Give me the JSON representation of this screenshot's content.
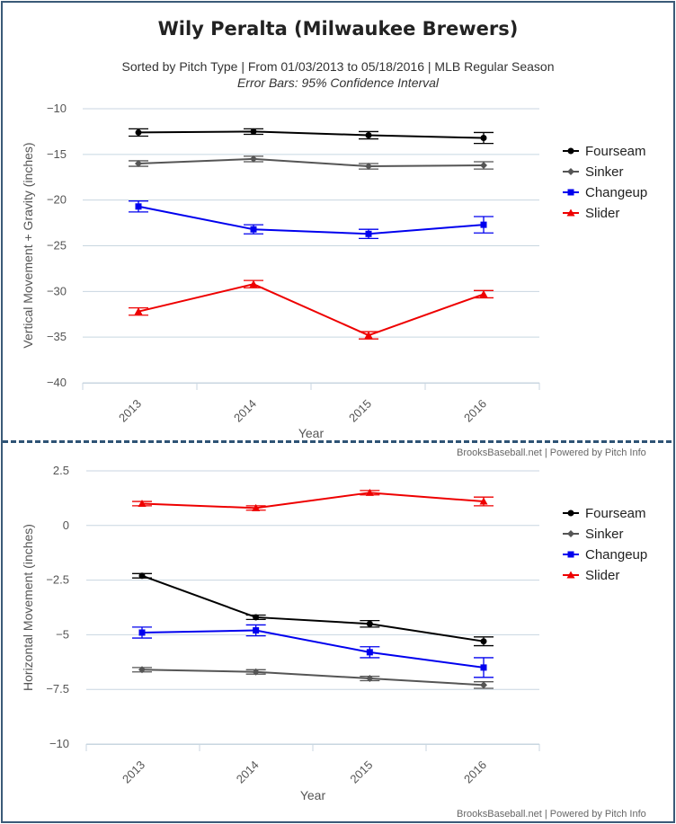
{
  "header": {
    "title": "Wily Peralta (Milwaukee Brewers)",
    "subtitle": "Sorted by Pitch Type | From 01/03/2013 to 05/18/2016 | MLB Regular Season",
    "subtitle2": "Error Bars: 95% Confidence Interval"
  },
  "credits": {
    "top": "BrooksBaseball.net | Powered by Pitch Info",
    "bottom": "BrooksBaseball.net | Powered by Pitch Info"
  },
  "colors": {
    "Fourseam": "#000000",
    "Sinker": "#555555",
    "Changeup": "#0000ee",
    "Slider": "#ee0000",
    "grid": "#c8d6e0",
    "separator": "#2e5375"
  },
  "chart_data": [
    {
      "type": "line",
      "title": "Wily Peralta (Milwaukee Brewers)",
      "xlabel": "Year",
      "ylabel": "Vertical Movement + Gravity (inches)",
      "categories": [
        "2013",
        "2014",
        "2015",
        "2016"
      ],
      "ylim": [
        -40,
        -10
      ],
      "yticks": [
        -10,
        -15,
        -20,
        -25,
        -30,
        -35,
        -40
      ],
      "ytick_labels": [
        "-10",
        "-15",
        "-20",
        "-25",
        "-30",
        "-35",
        "-40"
      ],
      "legend": "right",
      "series": [
        {
          "name": "Fourseam",
          "marker": "circle",
          "values": [
            -12.6,
            -12.5,
            -12.9,
            -13.2
          ],
          "err": [
            0.4,
            0.3,
            0.4,
            0.6
          ]
        },
        {
          "name": "Sinker",
          "marker": "diamond",
          "values": [
            -16.0,
            -15.5,
            -16.3,
            -16.2
          ],
          "err": [
            0.3,
            0.3,
            0.3,
            0.4
          ]
        },
        {
          "name": "Changeup",
          "marker": "square",
          "values": [
            -20.7,
            -23.2,
            -23.7,
            -22.7
          ],
          "err": [
            0.6,
            0.5,
            0.5,
            0.9
          ]
        },
        {
          "name": "Slider",
          "marker": "triangle",
          "values": [
            -32.2,
            -29.2,
            -34.8,
            -30.3
          ],
          "err": [
            0.4,
            0.4,
            0.4,
            0.4
          ]
        }
      ]
    },
    {
      "type": "line",
      "xlabel": "Year",
      "ylabel": "Horizontal Movement (inches)",
      "categories": [
        "2013",
        "2014",
        "2015",
        "2016"
      ],
      "ylim": [
        -10,
        2.5
      ],
      "yticks": [
        2.5,
        0,
        -2.5,
        -5,
        -7.5,
        -10
      ],
      "ytick_labels": [
        "2.5",
        "0",
        "-2.5",
        "-5",
        "-7.5",
        "-10"
      ],
      "legend": "right",
      "series": [
        {
          "name": "Fourseam",
          "marker": "circle",
          "values": [
            -2.3,
            -4.2,
            -4.5,
            -5.3
          ],
          "err": [
            0.1,
            0.1,
            0.15,
            0.2
          ]
        },
        {
          "name": "Sinker",
          "marker": "diamond",
          "values": [
            -6.6,
            -6.7,
            -7.0,
            -7.3
          ],
          "err": [
            0.1,
            0.1,
            0.1,
            0.15
          ]
        },
        {
          "name": "Changeup",
          "marker": "square",
          "values": [
            -4.9,
            -4.8,
            -5.8,
            -6.5
          ],
          "err": [
            0.25,
            0.25,
            0.25,
            0.45
          ]
        },
        {
          "name": "Slider",
          "marker": "triangle",
          "values": [
            1.0,
            0.8,
            1.5,
            1.1
          ],
          "err": [
            0.1,
            0.1,
            0.1,
            0.2
          ]
        }
      ]
    }
  ]
}
